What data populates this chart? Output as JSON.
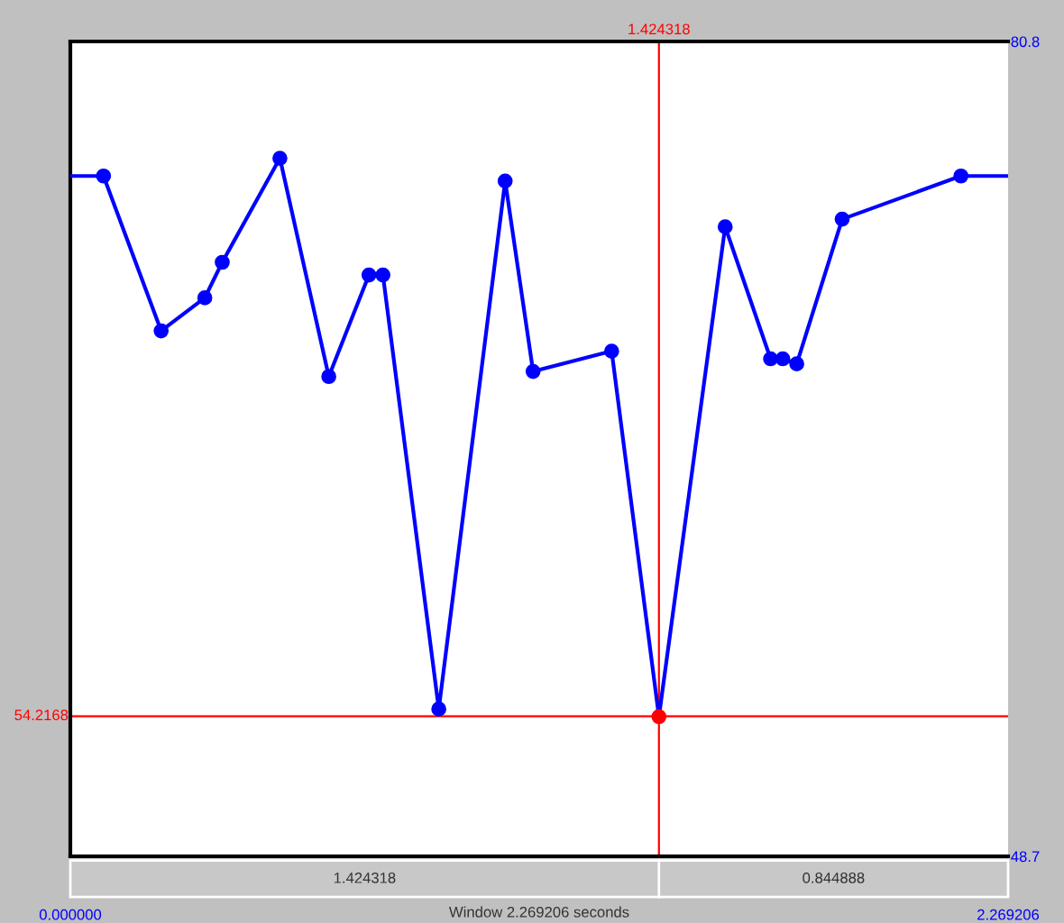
{
  "chart_data": {
    "type": "line",
    "xlim": [
      0,
      2.269206
    ],
    "ylim": [
      48.7,
      80.8
    ],
    "xticks": [
      {
        "value": 0,
        "label": "0.000000"
      },
      {
        "value": 2.269206,
        "label": "2.269206"
      }
    ],
    "yticks": [
      80.8,
      48.7
    ],
    "marker": "circle",
    "line_style": "solid",
    "grid": false,
    "legend": false,
    "series": [
      {
        "color": "#0000ff",
        "colors": [
          "#0000ff",
          "#0000ff",
          "#0000ff",
          "#0000ff",
          "#0000ff",
          "#0000ff",
          "#0000ff",
          "#0000ff",
          "#0000ff",
          "#0000ff",
          "#0000ff",
          "#0000ff",
          "#ff0000",
          "#0000ff",
          "#0000ff",
          "#0000ff",
          "#0000ff",
          "#0000ff",
          "#0000ff"
        ],
        "x": [
          0.0803,
          0.2197,
          0.3254,
          0.3676,
          0.5071,
          0.6254,
          0.7226,
          0.7564,
          0.8916,
          1.0522,
          1.1198,
          1.3099,
          1.4243,
          1.5846,
          1.6944,
          1.724,
          1.7578,
          1.8677,
          2.1551
        ],
        "values": [
          75.5,
          69.4,
          70.7,
          72.1,
          76.2,
          67.6,
          71.6,
          71.6,
          54.5,
          75.3,
          67.8,
          68.6,
          54.2,
          73.5,
          68.3,
          68.3,
          68.1,
          73.8,
          75.5
        ]
      },
      {
        "color": "#0000ff",
        "marker": "none",
        "x": [
          0,
          0.0803
        ],
        "values": [
          75.5,
          75.5
        ]
      },
      {
        "color": "#0000ff",
        "marker": "none",
        "x": [
          2.1551,
          2.269206
        ],
        "values": [
          75.5,
          75.5
        ]
      }
    ],
    "ref_lines": [
      {
        "axis": "x",
        "value": 1.424318,
        "label": "1.424318",
        "color": "#ff0000"
      },
      {
        "axis": "y",
        "value": 54.2168,
        "label": "54.2168",
        "color": "#ff0000"
      }
    ],
    "annotations": [
      "1.424318",
      "0.844888",
      "Window 2.269206 seconds"
    ]
  }
}
